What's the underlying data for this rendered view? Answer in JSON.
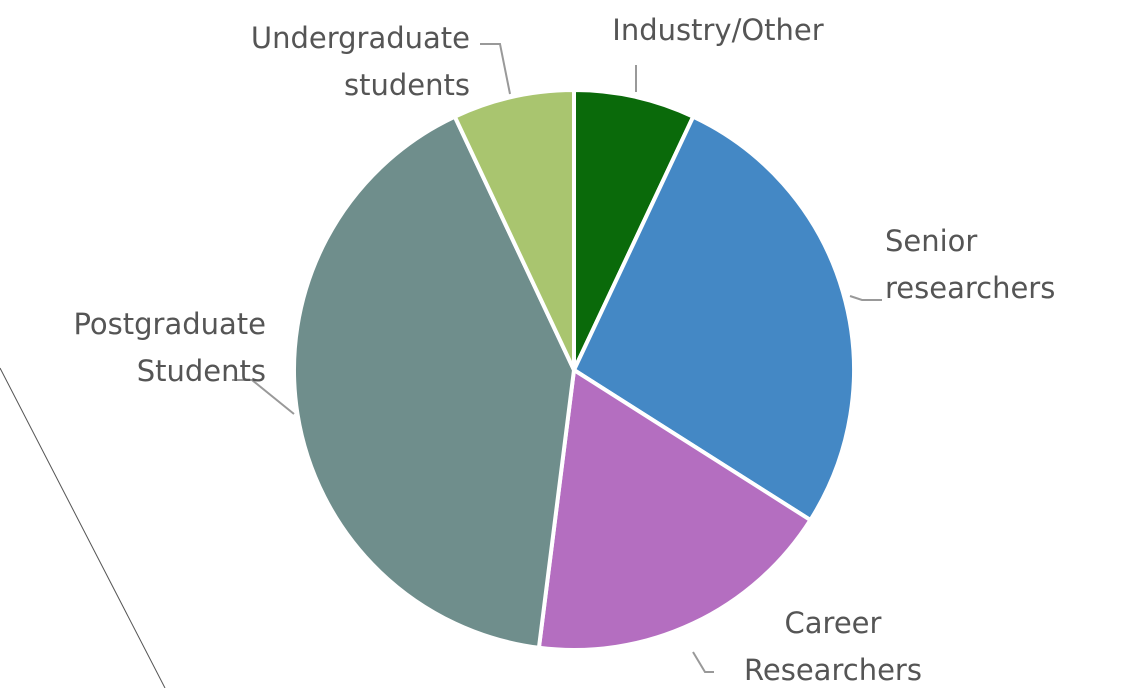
{
  "chart_data": {
    "type": "pie",
    "categories": [
      "Industry/Other",
      "Senior researchers",
      "Career Researchers",
      "Postgraduate Students",
      "Undergraduate students"
    ],
    "values": [
      7,
      27,
      18,
      41,
      7
    ],
    "colors": [
      "#0a6a0a",
      "#4488c5",
      "#b46ec0",
      "#6f8e8c",
      "#a9c56f"
    ]
  }
}
